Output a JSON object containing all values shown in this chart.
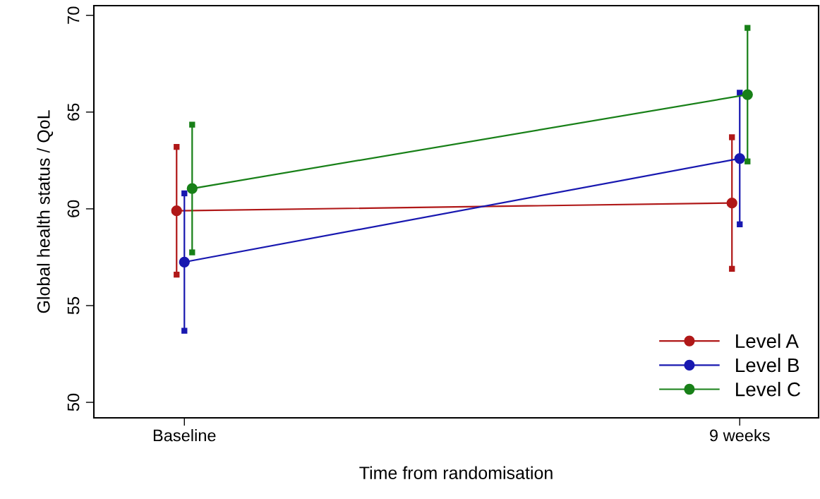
{
  "chart_data": {
    "type": "line",
    "xlabel": "Time from randomisation",
    "ylabel": "Global health status / QoL",
    "categories": [
      "Baseline",
      "9 weeks"
    ],
    "series": [
      {
        "name": "Level A",
        "color": "#b01818",
        "values": [
          59.9,
          60.3
        ],
        "errors": [
          3.3,
          3.4
        ]
      },
      {
        "name": "Level B",
        "color": "#1818b0",
        "values": [
          57.25,
          62.6
        ],
        "errors": [
          3.55,
          3.4
        ]
      },
      {
        "name": "Level C",
        "color": "#188018",
        "values": [
          61.05,
          65.9
        ],
        "errors": [
          3.3,
          3.45
        ]
      }
    ],
    "ylim": [
      49.2,
      70.5
    ],
    "yticks": [
      50,
      55,
      60,
      65,
      70
    ],
    "grid": false,
    "legend": "bottom right",
    "marker": "circle",
    "line_style": "solid"
  }
}
